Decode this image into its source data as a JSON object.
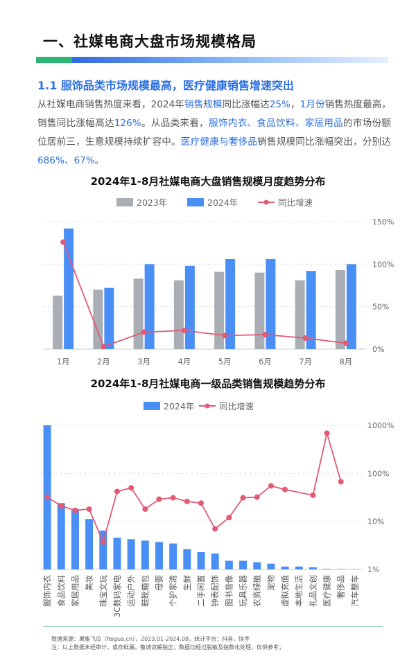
{
  "header": {
    "title": "一、社媒电商大盘市场规模格局",
    "section": "1.1 服饰品类市场规模最高，医疗健康销售增速突出"
  },
  "paragraph": [
    {
      "t": "从社媒电商销售热度来看，2024年",
      "h": false
    },
    {
      "t": "销售规模",
      "h": true
    },
    {
      "t": "同比涨幅达",
      "h": false
    },
    {
      "t": "25%",
      "h": true
    },
    {
      "t": "，",
      "h": false
    },
    {
      "t": "1月份",
      "h": true
    },
    {
      "t": "销售热度最高，销售同比涨幅高达",
      "h": false
    },
    {
      "t": "126%",
      "h": true
    },
    {
      "t": "。从品类来看，",
      "h": false
    },
    {
      "t": "服饰内衣、食品饮料、家居用品",
      "h": true
    },
    {
      "t": "的市场份额位居前三，生意规模持续扩容中。",
      "h": false
    },
    {
      "t": "医疗健康与奢侈品",
      "h": true
    },
    {
      "t": "销售规模同比涨幅突出，分别达",
      "h": false
    },
    {
      "t": "686%、67%",
      "h": true
    },
    {
      "t": "。",
      "h": false
    }
  ],
  "colors": {
    "bar2023": "#a9adb4",
    "bar2024": "#4a8ff5",
    "line": "#e25a73"
  },
  "chart_data": [
    {
      "type": "bar",
      "title": "2024年1-8月社媒电商大盘销售规模月度趋势分布",
      "categories": [
        "1月",
        "2月",
        "3月",
        "4月",
        "5月",
        "6月",
        "7月",
        "8月"
      ],
      "series": [
        {
          "name": "2023年",
          "type": "bar",
          "values": [
            63,
            70,
            83,
            81,
            91,
            90,
            81,
            93
          ]
        },
        {
          "name": "2024年",
          "type": "bar",
          "values": [
            142,
            72,
            100,
            98,
            106,
            106,
            92,
            100
          ]
        },
        {
          "name": "同比增速",
          "type": "line",
          "axis": "right",
          "values": [
            126,
            3,
            20,
            22,
            16,
            17,
            13,
            7
          ]
        }
      ],
      "yRight": {
        "ticks": [
          "0%",
          "50%",
          "100%",
          "150%"
        ],
        "range": [
          0,
          150
        ]
      },
      "legend": "top-center"
    },
    {
      "type": "bar",
      "title": "2024年1-8月社媒电商一级品类销售规模趋势分布",
      "categories": [
        "服饰内衣",
        "食品饮料",
        "家居用品",
        "美妆",
        "珠宝文玩",
        "3C数码家电",
        "运动户外",
        "鞋靴箱包",
        "母婴",
        "个护家清",
        "生鲜",
        "二手闲置",
        "钟表配饰",
        "图书音像",
        "玩具乐器",
        "农资绿植",
        "宠物",
        "虚拟充值",
        "本地生活",
        "礼品文创",
        "医疗健康",
        "奢侈品",
        "汽车整车"
      ],
      "series": [
        {
          "name": "2024年",
          "type": "bar",
          "values": [
            100,
            46,
            42,
            35,
            27,
            22,
            21,
            20,
            19,
            18,
            14,
            12,
            11,
            6,
            6,
            5,
            4,
            2,
            2,
            1.5,
            0.4,
            0.3,
            0.2
          ]
        },
        {
          "name": "同比增速",
          "type": "line",
          "axis": "right",
          "values": [
            32,
            21,
            17,
            18,
            3.7,
            42,
            50,
            18,
            29,
            31,
            26,
            24,
            7,
            12,
            31,
            32,
            55,
            46,
            null,
            35,
            686,
            67,
            null
          ]
        }
      ],
      "yRight": {
        "ticks": [
          "1%",
          "10%",
          "100%",
          "1000%"
        ],
        "scale": "log",
        "range": [
          1,
          1000
        ]
      },
      "legend": "top-center"
    }
  ],
  "footer": {
    "source": "数据来源：果集飞瓜（feigua.cn），2023.01-2024.08，统计平台：抖音，快手",
    "note": "注：以上数据未经审计，或存纰漏，敬请谅解指正；数据均经过脱敏及指数化处理，仅供参考；"
  }
}
